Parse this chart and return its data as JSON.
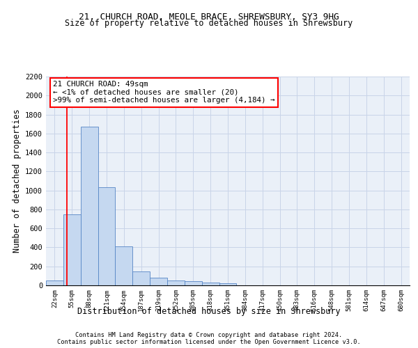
{
  "title1": "21, CHURCH ROAD, MEOLE BRACE, SHREWSBURY, SY3 9HG",
  "title2": "Size of property relative to detached houses in Shrewsbury",
  "xlabel": "Distribution of detached houses by size in Shrewsbury",
  "ylabel": "Number of detached properties",
  "categories": [
    "22sqm",
    "55sqm",
    "88sqm",
    "121sqm",
    "154sqm",
    "187sqm",
    "219sqm",
    "252sqm",
    "285sqm",
    "318sqm",
    "351sqm",
    "384sqm",
    "417sqm",
    "450sqm",
    "483sqm",
    "516sqm",
    "548sqm",
    "581sqm",
    "614sqm",
    "647sqm",
    "680sqm"
  ],
  "values": [
    50,
    748,
    1670,
    1033,
    410,
    150,
    82,
    48,
    42,
    30,
    20,
    0,
    0,
    0,
    0,
    0,
    0,
    0,
    0,
    0,
    0
  ],
  "bar_color": "#c5d8f0",
  "bar_edge_color": "#5585c5",
  "grid_color": "#c8d4e8",
  "background_color": "#eaf0f8",
  "red_line_x": 0.72,
  "annotation_line1": "21 CHURCH ROAD: 49sqm",
  "annotation_line2": "← <1% of detached houses are smaller (20)",
  "annotation_line3": ">99% of semi-detached houses are larger (4,184) →",
  "footer1": "Contains HM Land Registry data © Crown copyright and database right 2024.",
  "footer2": "Contains public sector information licensed under the Open Government Licence v3.0.",
  "ylim_max": 2200,
  "yticks": [
    0,
    200,
    400,
    600,
    800,
    1000,
    1200,
    1400,
    1600,
    1800,
    2000,
    2200
  ]
}
